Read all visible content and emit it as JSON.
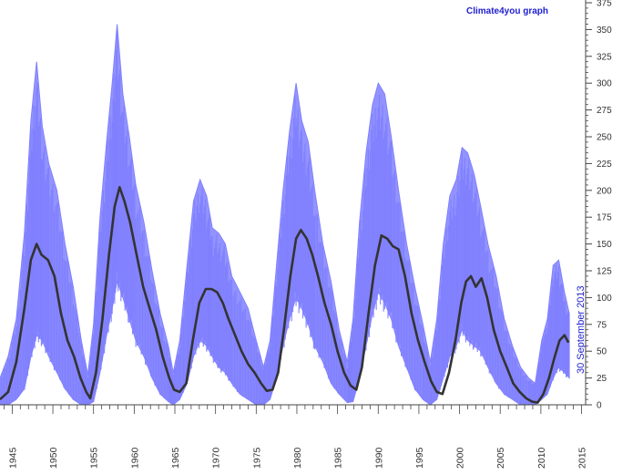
{
  "chart_data": {
    "type": "line",
    "title": "",
    "credit": "Climate4you graph",
    "date_stamp": "30 September 2013",
    "xlabel": "",
    "ylabel": "",
    "xlim": [
      1943.5,
      2015.5
    ],
    "ylim": [
      0,
      375
    ],
    "x_ticks": [
      1945,
      1950,
      1955,
      1960,
      1965,
      1970,
      1975,
      1980,
      1985,
      1990,
      1995,
      2000,
      2005,
      2010,
      2015
    ],
    "y_ticks": [
      0,
      25,
      50,
      75,
      100,
      125,
      150,
      175,
      200,
      225,
      250,
      275,
      300,
      325,
      350,
      375
    ],
    "y_axis_side": "right",
    "grid": false,
    "colors": {
      "monthly": "#8080ff",
      "smoothed": "#333333",
      "axis": "#444444",
      "text": "#2020d0"
    },
    "series": [
      {
        "style": "monthly-envelope",
        "x": [
          1943.5,
          1944.5,
          1945.5,
          1946.5,
          1947.3,
          1948.0,
          1948.7,
          1949.5,
          1950.5,
          1951.5,
          1952.5,
          1953.5,
          1954.3,
          1955.0,
          1955.8,
          1956.6,
          1957.3,
          1957.9,
          1958.6,
          1959.4,
          1960.2,
          1961.2,
          1962.2,
          1963.2,
          1964.2,
          1964.8,
          1965.6,
          1966.5,
          1967.3,
          1968.1,
          1968.9,
          1969.6,
          1970.4,
          1971.2,
          1972.0,
          1973.0,
          1974.0,
          1975.0,
          1975.9,
          1976.7,
          1977.5,
          1978.3,
          1979.1,
          1979.9,
          1980.6,
          1981.4,
          1982.2,
          1983.2,
          1984.2,
          1985.2,
          1986.2,
          1986.9,
          1987.7,
          1988.5,
          1989.3,
          1990.0,
          1990.8,
          1991.6,
          1992.5,
          1993.5,
          1994.5,
          1995.5,
          1996.4,
          1997.2,
          1998.0,
          1998.8,
          1999.6,
          2000.3,
          2001.0,
          2001.8,
          2002.6,
          2003.5,
          2004.5,
          2005.5,
          2006.5,
          2007.5,
          2008.5,
          2009.3,
          2010.1,
          2010.8,
          2011.5,
          2012.2,
          2012.9,
          2013.5
        ],
        "upper": [
          25,
          45,
          80,
          160,
          265,
          320,
          260,
          225,
          200,
          150,
          110,
          60,
          28,
          75,
          175,
          245,
          300,
          355,
          290,
          250,
          205,
          170,
          125,
          85,
          55,
          30,
          60,
          130,
          190,
          210,
          195,
          165,
          160,
          150,
          120,
          105,
          90,
          60,
          35,
          60,
          130,
          200,
          255,
          300,
          265,
          245,
          200,
          150,
          115,
          70,
          40,
          80,
          170,
          235,
          280,
          300,
          290,
          250,
          200,
          150,
          110,
          75,
          40,
          80,
          150,
          195,
          210,
          240,
          235,
          215,
          185,
          150,
          120,
          80,
          55,
          35,
          25,
          20,
          60,
          80,
          130,
          135,
          105,
          85
        ],
        "lower": [
          0,
          0,
          5,
          15,
          45,
          65,
          60,
          45,
          30,
          15,
          5,
          0,
          0,
          3,
          30,
          65,
          90,
          115,
          100,
          80,
          60,
          45,
          25,
          10,
          3,
          0,
          5,
          20,
          45,
          60,
          55,
          45,
          35,
          30,
          20,
          10,
          5,
          0,
          0,
          5,
          25,
          55,
          80,
          100,
          90,
          75,
          55,
          40,
          20,
          10,
          2,
          3,
          25,
          55,
          85,
          105,
          95,
          80,
          55,
          35,
          15,
          5,
          0,
          5,
          25,
          45,
          55,
          70,
          60,
          55,
          50,
          35,
          20,
          10,
          5,
          0,
          0,
          0,
          5,
          10,
          25,
          35,
          30,
          25
        ]
      },
      {
        "style": "smoothed",
        "x": [
          1943.5,
          1944.5,
          1945.5,
          1946.5,
          1947.3,
          1948.0,
          1948.6,
          1949.4,
          1950.2,
          1951.0,
          1951.8,
          1952.6,
          1953.4,
          1954.1,
          1954.6,
          1955.3,
          1956.1,
          1956.9,
          1957.6,
          1958.2,
          1958.8,
          1959.5,
          1960.3,
          1961.1,
          1961.9,
          1962.7,
          1963.5,
          1964.3,
          1964.9,
          1965.6,
          1966.4,
          1967.2,
          1968.0,
          1968.8,
          1969.5,
          1970.2,
          1970.9,
          1971.6,
          1972.4,
          1973.2,
          1974.0,
          1974.8,
          1975.6,
          1976.3,
          1977.0,
          1977.7,
          1978.4,
          1979.2,
          1979.9,
          1980.5,
          1981.2,
          1981.9,
          1982.6,
          1983.4,
          1984.2,
          1985.0,
          1985.8,
          1986.6,
          1987.3,
          1988.0,
          1988.8,
          1989.6,
          1990.4,
          1991.1,
          1991.8,
          1992.5,
          1993.3,
          1994.1,
          1994.9,
          1995.7,
          1996.5,
          1997.2,
          1997.9,
          1998.7,
          1999.5,
          2000.2,
          2000.8,
          2001.4,
          2002.0,
          2002.7,
          2003.4,
          2004.2,
          2005.0,
          2005.8,
          2006.6,
          2007.4,
          2008.2,
          2008.9,
          2009.6,
          2010.3,
          2011.0,
          2011.7,
          2012.3,
          2012.9,
          2013.4
        ],
        "values": [
          5,
          12,
          40,
          90,
          135,
          150,
          140,
          135,
          120,
          85,
          60,
          45,
          25,
          12,
          6,
          30,
          80,
          140,
          185,
          203,
          190,
          170,
          140,
          110,
          90,
          70,
          45,
          25,
          14,
          12,
          20,
          60,
          95,
          108,
          108,
          105,
          95,
          80,
          65,
          50,
          38,
          30,
          20,
          13,
          14,
          30,
          70,
          120,
          155,
          163,
          155,
          140,
          120,
          95,
          75,
          50,
          30,
          18,
          14,
          35,
          85,
          130,
          158,
          155,
          148,
          145,
          120,
          85,
          60,
          40,
          22,
          12,
          10,
          30,
          60,
          95,
          115,
          120,
          110,
          118,
          100,
          70,
          50,
          35,
          20,
          12,
          6,
          3,
          2,
          10,
          25,
          45,
          60,
          65,
          58
        ]
      }
    ]
  }
}
